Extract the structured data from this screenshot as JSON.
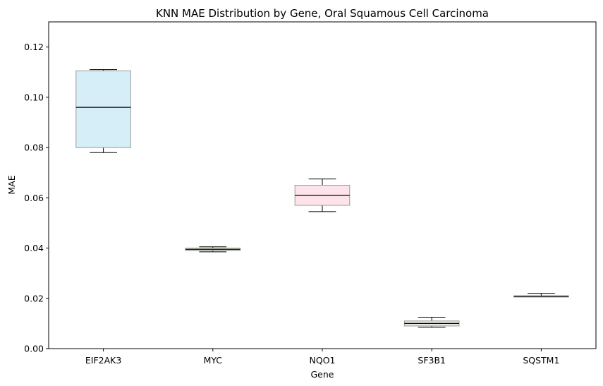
{
  "chart_data": {
    "type": "box",
    "title": "KNN MAE Distribution by Gene, Oral Squamous Cell Carcinoma",
    "xlabel": "Gene",
    "ylabel": "MAE",
    "ylim": [
      0,
      0.13
    ],
    "yticks": [
      "0.00",
      "0.02",
      "0.04",
      "0.06",
      "0.08",
      "0.10",
      "0.12"
    ],
    "grid": false,
    "categories": [
      "EIF2AK3",
      "MYC",
      "NQO1",
      "SF3B1",
      "SQSTM1"
    ],
    "boxes": [
      {
        "category": "EIF2AK3",
        "whisker_low": 0.078,
        "q1": 0.08,
        "median": 0.096,
        "q3": 0.1105,
        "whisker_high": 0.111,
        "color": "#d6eef7"
      },
      {
        "category": "MYC",
        "whisker_low": 0.0385,
        "q1": 0.039,
        "median": 0.0395,
        "q3": 0.04,
        "whisker_high": 0.0405,
        "color": "#c7d8c0"
      },
      {
        "category": "NQO1",
        "whisker_low": 0.0545,
        "q1": 0.057,
        "median": 0.061,
        "q3": 0.065,
        "whisker_high": 0.0675,
        "color": "#fde4ea"
      },
      {
        "category": "SF3B1",
        "whisker_low": 0.0085,
        "q1": 0.009,
        "median": 0.01,
        "q3": 0.011,
        "whisker_high": 0.0125,
        "color": "#e8e8e0"
      },
      {
        "category": "SQSTM1",
        "whisker_low": 0.0205,
        "q1": 0.0205,
        "median": 0.0208,
        "q3": 0.021,
        "whisker_high": 0.022,
        "color": "#e6e6e6"
      }
    ]
  }
}
